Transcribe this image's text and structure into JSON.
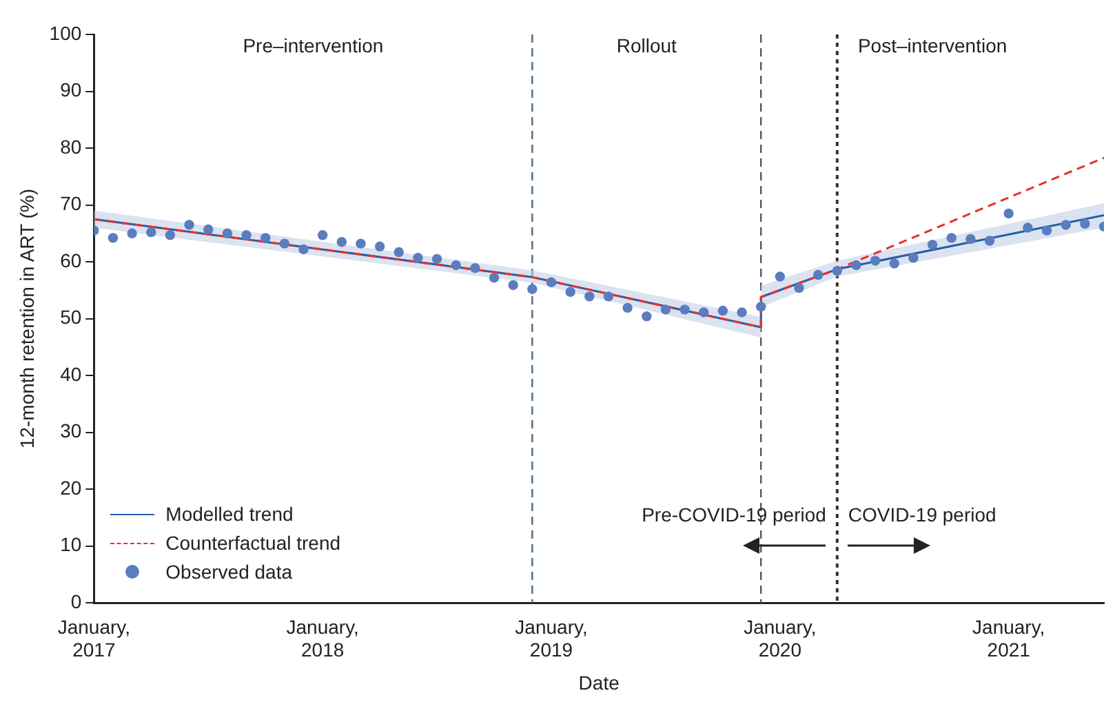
{
  "chart_data": {
    "type": "scatter",
    "xlabel": "Date",
    "ylabel": "12-month retention in ART (%)",
    "xlim": [
      "2017-01",
      "2021-06"
    ],
    "xticks": [
      {
        "value": "2017-01",
        "label": "January, 2017"
      },
      {
        "value": "2018-01",
        "label": "January, 2018"
      },
      {
        "value": "2019-01",
        "label": "January, 2019"
      },
      {
        "value": "2020-01",
        "label": "January, 2020"
      },
      {
        "value": "2021-01",
        "label": "January, 2021"
      }
    ],
    "ylim": [
      0,
      100
    ],
    "yticks": [
      0,
      10,
      20,
      30,
      40,
      50,
      60,
      70,
      80,
      90,
      100
    ],
    "grid": false,
    "legend": "bottom left",
    "series": [
      {
        "name": "Modelled trend",
        "type": "line",
        "color": "#1f5fa8",
        "marker": "none",
        "line_style": "solid",
        "x": [
          "2017-01",
          "2018-12",
          "2019-12",
          "2019-12",
          "2020-04",
          "2021-06"
        ],
        "values": [
          67.5,
          57.3,
          48.5,
          53.8,
          58.7,
          68.2
        ],
        "lower": [
          66.0,
          56.3,
          46.7,
          52.0,
          57.4,
          66.0
        ],
        "upper": [
          69.0,
          58.5,
          50.3,
          55.8,
          60.2,
          70.3
        ]
      },
      {
        "name": "Counterfactual trend",
        "type": "line",
        "color": "#e8302a",
        "marker": "none",
        "line_style": "dashed",
        "x": [
          "2017-01",
          "2018-12",
          "2019-12",
          "2019-12",
          "2020-04",
          "2021-06"
        ],
        "values": [
          67.5,
          57.3,
          48.5,
          53.8,
          58.7,
          78.3
        ]
      },
      {
        "name": "Observed data",
        "type": "scatter",
        "color": "#5b7dbf",
        "marker": "circle",
        "x": [
          "2017-01",
          "2017-02",
          "2017-03",
          "2017-04",
          "2017-05",
          "2017-06",
          "2017-07",
          "2017-08",
          "2017-09",
          "2017-10",
          "2017-11",
          "2017-12",
          "2018-01",
          "2018-02",
          "2018-03",
          "2018-04",
          "2018-05",
          "2018-06",
          "2018-07",
          "2018-08",
          "2018-09",
          "2018-10",
          "2018-11",
          "2018-12",
          "2019-01",
          "2019-02",
          "2019-03",
          "2019-04",
          "2019-05",
          "2019-06",
          "2019-07",
          "2019-08",
          "2019-09",
          "2019-10",
          "2019-11",
          "2019-12",
          "2020-01",
          "2020-02",
          "2020-03",
          "2020-04",
          "2020-05",
          "2020-06",
          "2020-07",
          "2020-08",
          "2020-09",
          "2020-10",
          "2020-11",
          "2020-12",
          "2021-01",
          "2021-02",
          "2021-03",
          "2021-04",
          "2021-05",
          "2021-06"
        ],
        "values": [
          65.5,
          64.2,
          65.0,
          65.2,
          64.7,
          66.5,
          65.7,
          65.0,
          64.7,
          64.2,
          63.2,
          62.2,
          64.7,
          63.5,
          63.2,
          62.7,
          61.7,
          60.7,
          60.5,
          59.4,
          58.9,
          57.2,
          55.9,
          55.2,
          56.4,
          54.7,
          53.9,
          53.9,
          51.9,
          50.4,
          51.6,
          51.6,
          51.1,
          51.4,
          51.1,
          52.1,
          57.4,
          55.4,
          57.7,
          58.4,
          59.4,
          60.2,
          59.7,
          60.7,
          63.0,
          64.2,
          64.0,
          63.7,
          68.5,
          66.0,
          65.5,
          66.5,
          66.7,
          66.2
        ]
      }
    ],
    "ref_lines": [
      {
        "axis": "x",
        "value": "2018-12",
        "color": "#4a6a85",
        "line_style": "dashed"
      },
      {
        "axis": "x",
        "value": "2019-12",
        "color": "#4a5a68",
        "line_style": "dashed"
      },
      {
        "axis": "x",
        "value": "2020-04",
        "color": "#333333",
        "line_style": "dotted"
      }
    ],
    "annotations": [
      "Pre–intervention",
      "Rollout",
      "Post–intervention",
      "Pre-COVID-19 period",
      "COVID-19 period"
    ]
  }
}
